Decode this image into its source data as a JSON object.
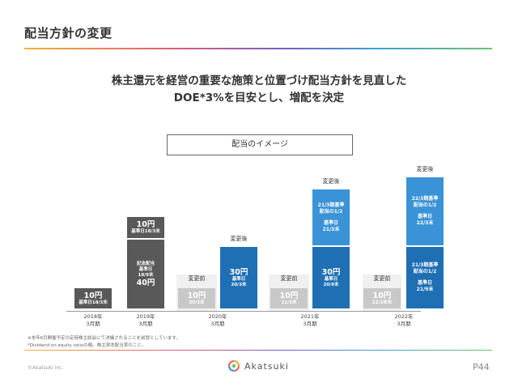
{
  "header": {
    "title": "配当方針の変更"
  },
  "headline": {
    "line1": "株主還元を経営の重要な施策と位置づけ配当方針を見直した",
    "line2": "DOE*3%を目安とし、増配を決定"
  },
  "diagram": {
    "box_label": "配当のイメージ",
    "change_before": "変更前",
    "change_after": "変更後",
    "fy2018": {
      "axis": "2018年\n3月期",
      "bar_amount": "10円",
      "bar_sub": "基準日18/3末"
    },
    "fy2019": {
      "axis": "2019年\n3月期",
      "top_amount": "10円",
      "top_sub": "基準日18/3末",
      "bottom_line1": "記念配当",
      "bottom_line2": "基準日",
      "bottom_line3": "18/9末",
      "bottom_amount": "40円"
    },
    "fy2020": {
      "axis": "2020年\n3月期",
      "before_amount": "10円",
      "before_sub": "20/3末",
      "after_amount": "30円",
      "after_sub1": "基準日",
      "after_sub2": "20/3末"
    },
    "fy2021": {
      "axis": "2021年\n3月期",
      "before_amount": "10円",
      "before_sub": "21/3末",
      "top_line1": "21/3期基準",
      "top_line2": "配当の1/2",
      "top_line3": "基準日",
      "top_line4": "21/3末",
      "after_amount": "30円",
      "after_sub1": "基準日",
      "after_sub2": "20/9末"
    },
    "fy2022": {
      "axis": "2022年\n3月期",
      "before_amount": "10円",
      "before_sub": "22/3末末",
      "top_line1": "22/3期基準",
      "top_line2": "配当の1/2",
      "top_line3": "基準日",
      "top_line4": "22/3末",
      "bottom_line1": "21/3期基準",
      "bottom_line2": "配当の1/2",
      "bottom_line3": "基準日",
      "bottom_line4": "21/9末"
    }
  },
  "notes": {
    "note1": "※本年6月開催予定の定時株主総会にて決議されることを前提としています。",
    "note2": "*Dividend on equity ratioの略。株主資本配当率のこと。"
  },
  "footer": {
    "copyright": "©Akatsuki Inc.",
    "logo_text": "Akatsuki",
    "page": "P44"
  },
  "colors": {
    "dark_bar": "#595959",
    "gray_bar": "#c8c8c8",
    "blue_bar": "#1f6fb5",
    "light_blue_bar": "#3a93d6"
  }
}
